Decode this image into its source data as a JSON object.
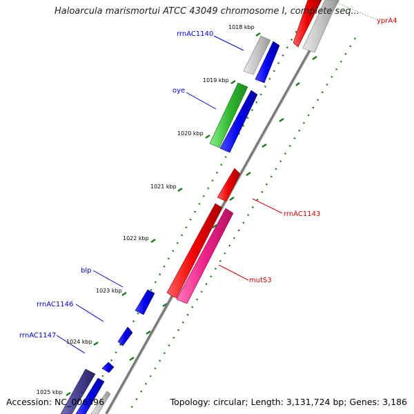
{
  "title": "Haloarcula marismortui ATCC 43049 chromosome I, complete seq...",
  "footer": {
    "accession": "Accession: NC_006396",
    "topology": "Topology: circular; Length: 3,131,724 bp; Genes: 3,186"
  },
  "colors": {
    "backbone": "#7a7a7a",
    "tick": "#1a7a1a",
    "label_blue": "#0000cc",
    "label_red": "#cc0000"
  },
  "ticks": [
    "1018 kbp",
    "1019 kbp",
    "1020 kbp",
    "1021 kbp",
    "1022 kbp",
    "1023 kbp",
    "1024 kbp",
    "1025 kbp"
  ],
  "features": [
    {
      "id": "yprA4",
      "label": "yprA4",
      "color": "#e00000"
    },
    {
      "id": "rrnAC1140",
      "label": "rrnAC1140",
      "color": "#bbbbbb"
    },
    {
      "id": "oye",
      "label": "oye",
      "color": "#33bb33"
    },
    {
      "id": "rrnAC1143",
      "label": "rrnAC1143",
      "color": "#e00000"
    },
    {
      "id": "mutS3",
      "label": "mutS3",
      "color": "#ee2288"
    },
    {
      "id": "blp",
      "label": "blp",
      "color": "#0000ee"
    },
    {
      "id": "rrnAC1146",
      "label": "rrnAC1146",
      "color": "#0000ee"
    },
    {
      "id": "rrnAC1147",
      "label": "rrnAC1147",
      "color": "#0000ee"
    }
  ]
}
